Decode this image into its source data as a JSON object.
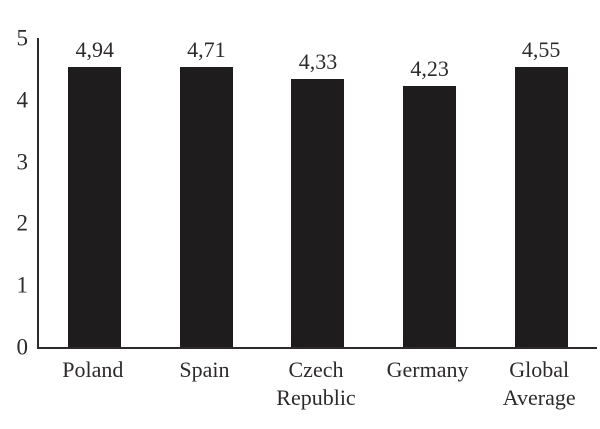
{
  "chart_data": {
    "type": "bar",
    "title": "",
    "xlabel": "",
    "ylabel": "",
    "categories": [
      "Poland",
      "Spain",
      "Czech Republic",
      "Germany",
      "Global Average"
    ],
    "values": [
      4.94,
      4.71,
      4.33,
      4.23,
      4.55
    ],
    "value_labels": [
      "4,94",
      "4,71",
      "4,33",
      "4,23",
      "4,55"
    ],
    "ylim": [
      0,
      5
    ],
    "yticks": [
      0,
      1,
      2,
      3,
      4,
      5
    ],
    "grid": false,
    "legend": false,
    "bar_color": "#1f1c1d",
    "axis_color": "#2e2a2b",
    "text_color": "#2e2a2b",
    "background_color": "#ffffff"
  }
}
